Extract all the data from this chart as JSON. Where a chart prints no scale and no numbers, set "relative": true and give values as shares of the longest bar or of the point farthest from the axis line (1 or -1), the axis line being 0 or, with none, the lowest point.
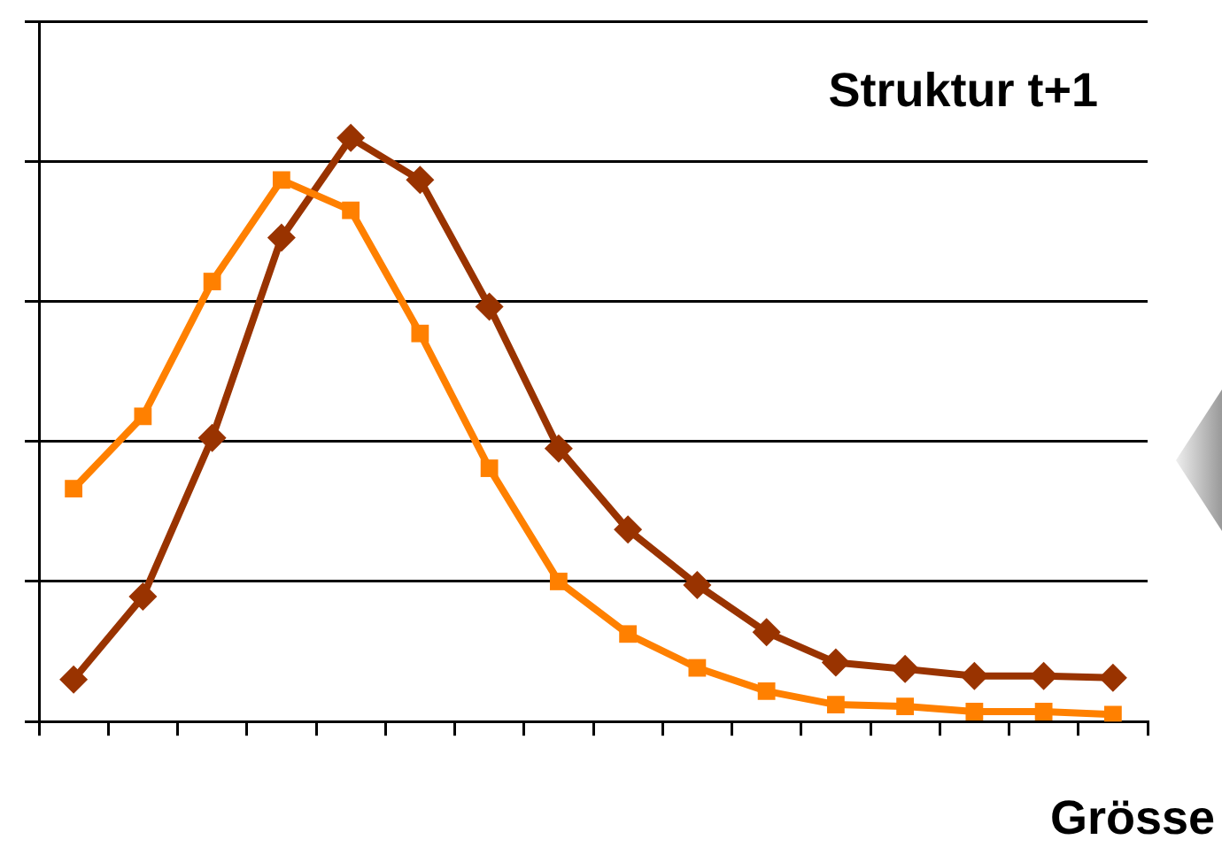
{
  "chart_data": {
    "type": "line",
    "title": "Struktur t+1",
    "xlabel": "Grösse",
    "relative": true,
    "grid": "y",
    "legend": false,
    "line_style": "solid",
    "categories": [
      null,
      null,
      null,
      null,
      null,
      null,
      null,
      null,
      null,
      null,
      null,
      null,
      null,
      null,
      null,
      null
    ],
    "series": [
      {
        "color": "#ff8000",
        "marker": "square",
        "values": [
          0.399,
          0.523,
          0.754,
          0.928,
          0.876,
          0.665,
          0.434,
          0.24,
          0.15,
          0.092,
          0.052,
          0.029,
          0.026,
          0.017,
          0.017,
          0.012
        ]
      },
      {
        "color": "#993300",
        "marker": "diamond",
        "values": [
          0.072,
          0.214,
          0.486,
          0.829,
          1,
          0.928,
          0.711,
          0.468,
          0.329,
          0.234,
          0.153,
          0.101,
          0.09,
          0.078,
          0.078,
          0.075
        ]
      }
    ]
  }
}
